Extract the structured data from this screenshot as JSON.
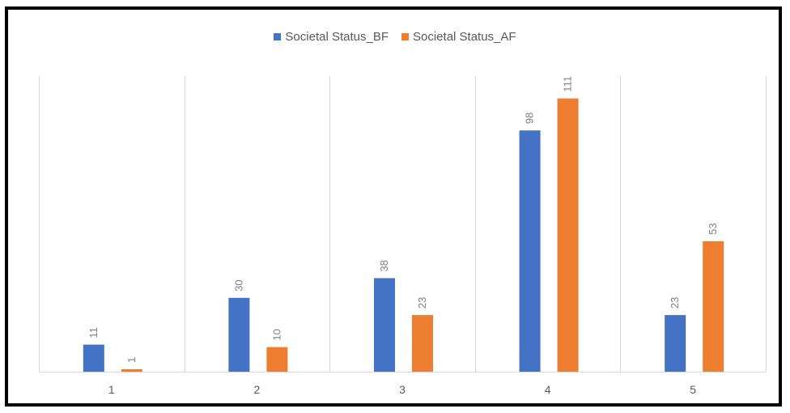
{
  "chart_data": {
    "type": "bar",
    "categories": [
      "1",
      "2",
      "3",
      "4",
      "5"
    ],
    "series": [
      {
        "name": "Societal Status_BF",
        "values": [
          11,
          30,
          38,
          98,
          23
        ],
        "color": "#4472c4"
      },
      {
        "name": "Societal Status_AF",
        "values": [
          1,
          10,
          23,
          111,
          53
        ],
        "color": "#ed7d31"
      }
    ],
    "title": "",
    "xlabel": "",
    "ylabel": "",
    "ylim": [
      0,
      122
    ],
    "grid": "vertical-category-separators",
    "legend_placement": "top-center",
    "data_labels": "rotated-vertical"
  }
}
